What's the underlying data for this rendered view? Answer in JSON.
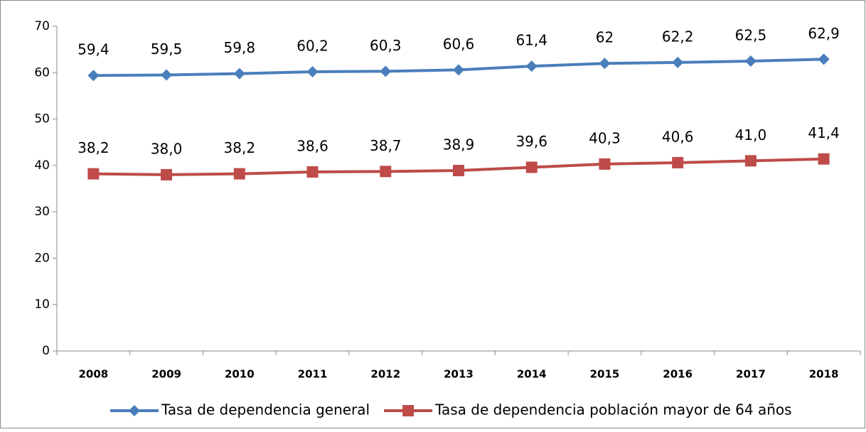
{
  "chart_data": {
    "type": "line",
    "categories": [
      "2008",
      "2009",
      "2010",
      "2011",
      "2012",
      "2013",
      "2014",
      "2015",
      "2016",
      "2017",
      "2018"
    ],
    "series": [
      {
        "name": "Tasa de dependencia general",
        "color": "#4a7ebb",
        "marker": "diamond",
        "values": [
          59.4,
          59.5,
          59.8,
          60.2,
          60.3,
          60.6,
          61.4,
          62,
          62.2,
          62.5,
          62.9
        ],
        "value_labels": [
          "59,4",
          "59,5",
          "59,8",
          "60,2",
          "60,3",
          "60,6",
          "61,4",
          "62",
          "62,2",
          "62,5",
          "62,9"
        ]
      },
      {
        "name": "Tasa de dependencia población mayor de 64 años",
        "color": "#be4b48",
        "marker": "square",
        "values": [
          38.2,
          38.0,
          38.2,
          38.6,
          38.7,
          38.9,
          39.6,
          40.3,
          40.6,
          41.0,
          41.4
        ],
        "value_labels": [
          "38,2",
          "38,0",
          "38,2",
          "38,6",
          "38,7",
          "38,9",
          "39,6",
          "40,3",
          "40,6",
          "41,0",
          "41,4"
        ]
      }
    ],
    "ylim": [
      0,
      70
    ],
    "yticks": [
      0,
      10,
      20,
      30,
      40,
      50,
      60,
      70
    ],
    "grid": false,
    "legend": "bottom"
  }
}
